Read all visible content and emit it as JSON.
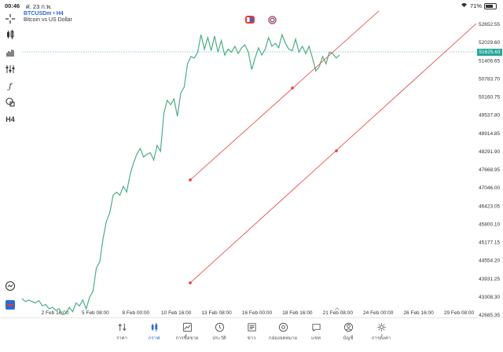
{
  "status_bar": {
    "time": "00:46",
    "date": "ศ. 23 ก.พ.",
    "battery_percent": "71%"
  },
  "symbol": {
    "name": "BTCUSDm • H4",
    "description": "Bitcoin vs US Dollar"
  },
  "toolbar": {
    "timeframe_label": "H4",
    "icons": [
      "crosshair-icon",
      "candles-icon",
      "bars-icon",
      "indicators-icon",
      "function-icon",
      "objects-icon",
      "timeframe-icon",
      "zoom-icon",
      "trade-icon"
    ]
  },
  "price_axis": {
    "labels": [
      "52652.55",
      "52029.60",
      "51406.65",
      "50783.70",
      "50160.75",
      "49537.80",
      "48914.85",
      "48291.90",
      "47668.95",
      "47046.00",
      "46423.05",
      "45800.10",
      "45177.15",
      "44554.20",
      "43931.25",
      "43308.30",
      "42685.35"
    ],
    "current_price": "51625.63"
  },
  "time_axis": {
    "labels": [
      "2 Feb 16:00",
      "5 Feb 08:00",
      "8 Feb 00:00",
      "10 Feb 16:00",
      "13 Feb 08:00",
      "16 Feb 00:00",
      "18 Feb 16:00",
      "21 Feb 08:00",
      "24 Feb 00:00",
      "26 Feb 16:00",
      "29 Feb 08:00"
    ]
  },
  "chart_data": {
    "type": "line",
    "series": [
      {
        "values": [
          43250,
          43150,
          43200,
          43150,
          43100,
          43180,
          43000,
          43050,
          42900,
          42950,
          42850,
          42900,
          42700,
          42750,
          42950,
          42800,
          43100,
          43000,
          43200,
          42900,
          43300,
          43500,
          44300,
          44500,
          45300,
          45900,
          46200,
          46800,
          46900,
          46800,
          47100,
          46900,
          47500,
          47900,
          48200,
          48400,
          48100,
          48200,
          48250,
          48000,
          48500,
          48300,
          49600,
          50050,
          49900,
          50100,
          49500,
          50300,
          50500,
          51300,
          51550,
          51500,
          51700,
          52300,
          51800,
          52200,
          51750,
          52250,
          51700,
          52100,
          51600,
          51800,
          51700,
          51900,
          51650,
          51850,
          51950,
          51700,
          51100,
          51500,
          51850,
          51600,
          51800,
          52200,
          51900,
          52000,
          51850,
          52300,
          52000,
          51800,
          51750,
          52150,
          51700,
          51900,
          51650,
          51900,
          51500,
          51050,
          51200,
          51550,
          51300,
          51700,
          51650,
          51500,
          51600
        ]
      }
    ],
    "ylim": [
      42685.35,
      52652.55
    ]
  },
  "tabs": [
    {
      "label": "ราคา",
      "icon": "quotes-icon"
    },
    {
      "label": "กราฟ",
      "icon": "chart-icon"
    },
    {
      "label": "การซื้อขาย",
      "icon": "trade-icon"
    },
    {
      "label": "ประวัติ",
      "icon": "history-icon"
    },
    {
      "label": "ข่าว",
      "icon": "news-icon"
    },
    {
      "label": "กล่องจดหมาย",
      "icon": "mailbox-icon"
    },
    {
      "label": "แชท",
      "icon": "chat-icon"
    },
    {
      "label": "บัญชี",
      "icon": "account-icon"
    },
    {
      "label": "การตั้งค่า",
      "icon": "settings-icon"
    }
  ],
  "colors": {
    "series_line": "#4caf80",
    "trend_line": "#e53935",
    "current_price_line": "#26a69a",
    "active_tab": "#2a6bd1"
  }
}
